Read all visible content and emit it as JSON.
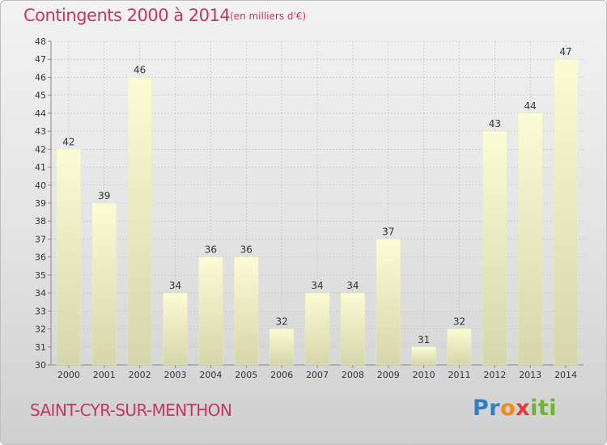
{
  "header": {
    "title": "Contingents 2000 à 2014",
    "subtitle": "(en milliers d'€)"
  },
  "footer": {
    "commune": "SAINT-CYR-SUR-MENTHON",
    "logo_text": "Proxiti"
  },
  "colors": {
    "title": "#c8336a",
    "bar_top": "#fbfbd4",
    "bar_bottom": "#d6d6ac",
    "grid": "#bbbbbb"
  },
  "chart_data": {
    "type": "bar",
    "categories": [
      "2000",
      "2001",
      "2002",
      "2003",
      "2004",
      "2005",
      "2006",
      "2007",
      "2008",
      "2009",
      "2010",
      "2011",
      "2012",
      "2013",
      "2014"
    ],
    "values": [
      42,
      39,
      46,
      34,
      36,
      36,
      32,
      34,
      34,
      37,
      31,
      32,
      43,
      44,
      47
    ],
    "title": "Contingents 2000 à 2014",
    "subtitle": "(en milliers d'€)",
    "ylim": [
      30,
      48
    ],
    "yticks": [
      30,
      31,
      32,
      33,
      34,
      35,
      36,
      37,
      38,
      39,
      40,
      41,
      42,
      43,
      44,
      45,
      46,
      47,
      48
    ],
    "grid": true,
    "data_labels": true
  }
}
